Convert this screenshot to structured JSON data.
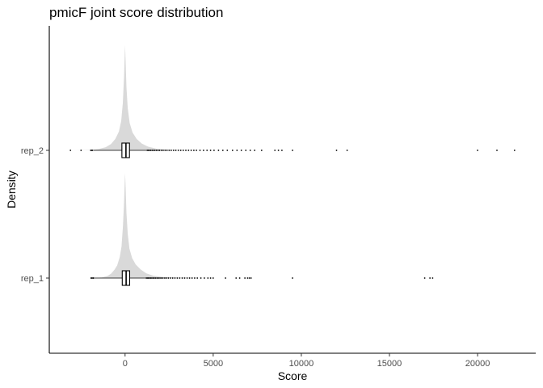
{
  "chart_data": {
    "type": "ridgeline-boxplot",
    "title": "pmicF joint score distribution",
    "xlabel": "Score",
    "ylabel": "Density",
    "xlim": [
      -4300,
      23300
    ],
    "x_ticks": [
      0,
      5000,
      10000,
      15000,
      20000
    ],
    "x_tick_labels": [
      "0",
      "5000",
      "10000",
      "15000",
      "20000"
    ],
    "categories": [
      "rep_1",
      "rep_2"
    ],
    "grid": false,
    "colors": {
      "density": "#d9d9d9",
      "box": "#ffffff",
      "box_line": "#000000",
      "outlier": "#000000"
    },
    "series": [
      {
        "name": "rep_1",
        "density": [
          [
            -1800,
            0
          ],
          [
            -1300,
            0.006
          ],
          [
            -1000,
            0.02
          ],
          [
            -800,
            0.04
          ],
          [
            -600,
            0.08
          ],
          [
            -450,
            0.12
          ],
          [
            -300,
            0.2
          ],
          [
            -200,
            0.3
          ],
          [
            -120,
            0.5
          ],
          [
            -60,
            0.72
          ],
          [
            -20,
            0.92
          ],
          [
            0,
            1.0
          ],
          [
            30,
            0.88
          ],
          [
            80,
            0.62
          ],
          [
            150,
            0.42
          ],
          [
            250,
            0.28
          ],
          [
            400,
            0.19
          ],
          [
            600,
            0.13
          ],
          [
            900,
            0.08
          ],
          [
            1200,
            0.045
          ],
          [
            1600,
            0.022
          ],
          [
            2200,
            0.01
          ],
          [
            3000,
            0.004
          ],
          [
            4000,
            0.0015
          ],
          [
            5000,
            0
          ]
        ],
        "box": {
          "q1": -160,
          "median": 60,
          "q3": 260,
          "whisker_low": -1750,
          "whisker_high": 1150
        },
        "outliers": [
          -1930,
          -1880,
          -1820,
          -1790,
          1200,
          1260,
          1320,
          1380,
          1450,
          1520,
          1590,
          1660,
          1740,
          1820,
          1900,
          1980,
          2060,
          2150,
          2250,
          2350,
          2460,
          2580,
          2700,
          2830,
          2960,
          3100,
          3240,
          3380,
          3520,
          3660,
          3800,
          3950,
          4100,
          4300,
          4500,
          4700,
          4850,
          5000,
          5700,
          6300,
          6500,
          6800,
          6950,
          7050,
          7150,
          9500,
          17000,
          17300,
          17450
        ]
      },
      {
        "name": "rep_2",
        "density": [
          [
            -3000,
            0
          ],
          [
            -2000,
            0.003
          ],
          [
            -1500,
            0.012
          ],
          [
            -1100,
            0.03
          ],
          [
            -800,
            0.06
          ],
          [
            -550,
            0.11
          ],
          [
            -350,
            0.18
          ],
          [
            -220,
            0.28
          ],
          [
            -130,
            0.45
          ],
          [
            -60,
            0.7
          ],
          [
            -20,
            0.92
          ],
          [
            0,
            1.0
          ],
          [
            30,
            0.86
          ],
          [
            80,
            0.6
          ],
          [
            150,
            0.4
          ],
          [
            260,
            0.26
          ],
          [
            420,
            0.17
          ],
          [
            650,
            0.11
          ],
          [
            950,
            0.065
          ],
          [
            1300,
            0.035
          ],
          [
            1800,
            0.015
          ],
          [
            2500,
            0.006
          ],
          [
            3500,
            0.002
          ],
          [
            5000,
            0
          ]
        ],
        "box": {
          "q1": -180,
          "median": 50,
          "q3": 250,
          "whisker_low": -1800,
          "whisker_high": 1200
        },
        "outliers": [
          -3100,
          -2500,
          -1950,
          -1900,
          -1850,
          1250,
          1310,
          1380,
          1450,
          1530,
          1610,
          1690,
          1780,
          1870,
          1960,
          2060,
          2160,
          2270,
          2380,
          2500,
          2620,
          2750,
          2880,
          3020,
          3160,
          3300,
          3450,
          3600,
          3750,
          3900,
          4050,
          4250,
          4450,
          4650,
          4850,
          5050,
          5300,
          5550,
          5800,
          6100,
          6350,
          6600,
          6850,
          7100,
          7350,
          7750,
          8500,
          8700,
          8900,
          9500,
          12000,
          12600,
          20000,
          21100,
          22100
        ]
      }
    ]
  }
}
